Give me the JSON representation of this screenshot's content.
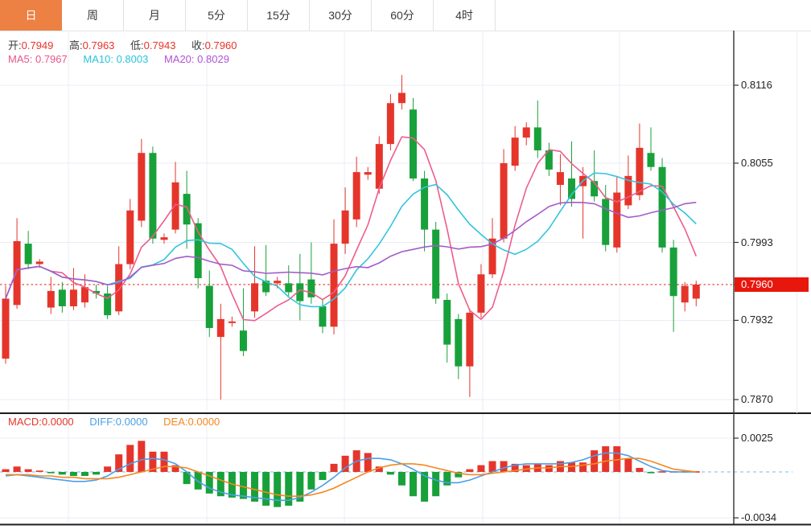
{
  "tabs": {
    "items": [
      {
        "label": "日",
        "active": true
      },
      {
        "label": "周",
        "active": false
      },
      {
        "label": "月",
        "active": false
      },
      {
        "label": "5分",
        "active": false
      },
      {
        "label": "15分",
        "active": false
      },
      {
        "label": "30分",
        "active": false
      },
      {
        "label": "60分",
        "active": false
      },
      {
        "label": "4时",
        "active": false
      }
    ]
  },
  "legend": {
    "ohlc": [
      {
        "label": "开:",
        "value": "0.7949"
      },
      {
        "label": "高:",
        "value": "0.7963"
      },
      {
        "label": "低:",
        "value": "0.7943"
      },
      {
        "label": "收:",
        "value": "0.7960"
      }
    ],
    "ma": [
      {
        "label": "MA5:",
        "value": "0.7967",
        "color": "#e8558a"
      },
      {
        "label": "MA10:",
        "value": "0.8003",
        "color": "#29c4dc"
      },
      {
        "label": "MA20:",
        "value": "0.8029",
        "color": "#b152d8"
      }
    ]
  },
  "macd_legend": [
    {
      "label": "MACD:",
      "value": "0.0000",
      "color": "#e8342c"
    },
    {
      "label": "DIFF:",
      "value": "0.0000",
      "color": "#4b9fe8"
    },
    {
      "label": "DEA:",
      "value": "0.0000",
      "color": "#f5871f"
    }
  ],
  "axis": {
    "price_ticks": [
      "0.8116",
      "0.8055",
      "0.7993",
      "0.7932",
      "0.7870"
    ],
    "price_tick_values": [
      0.8116,
      0.8055,
      0.7993,
      0.7932,
      0.787
    ],
    "last_price": "0.7960",
    "last_price_value": 0.796,
    "macd_ticks": [
      "0.0025",
      "-0.0034"
    ],
    "macd_tick_values": [
      0.0025,
      -0.0034
    ]
  },
  "colors": {
    "up": "#e5352b",
    "down": "#18a13a",
    "ma5": "#ed5d8c",
    "ma10": "#35c4dc",
    "ma20": "#a45cc8",
    "diff": "#4b9fe8",
    "dea": "#f5871f",
    "grid": "#e8edf5",
    "zero_dash": "#a5d2ee",
    "dotted_last": "#e8342c",
    "badge": "#e8170e",
    "axis_line": "#333333",
    "tab_active": "#ed8144"
  },
  "chart_data": {
    "type": "candlestick",
    "convention": "CN colors: red = up (close>open), green = down (close<open)",
    "title": "",
    "price_axis_labels": [
      0.8116,
      0.8055,
      0.7993,
      0.7932,
      0.787
    ],
    "last_close": 0.796,
    "macd_axis": {
      "top": 0.0025,
      "bottom": -0.0034
    },
    "ma_periods": [
      5,
      10,
      20
    ],
    "candles": [
      [
        0.7902,
        0.7959,
        0.7898,
        0.7949
      ],
      [
        0.7944,
        0.8012,
        0.7941,
        0.7994
      ],
      [
        0.7992,
        0.8002,
        0.7972,
        0.7976
      ],
      [
        0.7976,
        0.798,
        0.7973,
        0.7978
      ],
      [
        0.7942,
        0.7966,
        0.7937,
        0.7955
      ],
      [
        0.7956,
        0.7962,
        0.7938,
        0.7943
      ],
      [
        0.7943,
        0.7973,
        0.794,
        0.7956
      ],
      [
        0.7946,
        0.7968,
        0.7942,
        0.7958
      ],
      [
        0.7955,
        0.796,
        0.7949,
        0.7953
      ],
      [
        0.7953,
        0.7959,
        0.7933,
        0.7936
      ],
      [
        0.7939,
        0.799,
        0.7936,
        0.7976
      ],
      [
        0.7976,
        0.8027,
        0.7972,
        0.8018
      ],
      [
        0.801,
        0.8074,
        0.8005,
        0.8063
      ],
      [
        0.8063,
        0.8068,
        0.7992,
        0.7996
      ],
      [
        0.7995,
        0.8,
        0.7992,
        0.7997
      ],
      [
        0.8003,
        0.8056,
        0.8,
        0.804
      ],
      [
        0.8031,
        0.8049,
        0.7988,
        0.8007
      ],
      [
        0.8008,
        0.8012,
        0.7957,
        0.7965
      ],
      [
        0.7959,
        0.7971,
        0.7919,
        0.7926
      ],
      [
        0.7919,
        0.7945,
        0.787,
        0.7933
      ],
      [
        0.793,
        0.7935,
        0.7927,
        0.7931
      ],
      [
        0.7924,
        0.7957,
        0.7904,
        0.7908
      ],
      [
        0.7939,
        0.799,
        0.7934,
        0.7961
      ],
      [
        0.7963,
        0.7991,
        0.7951,
        0.7954
      ],
      [
        0.7961,
        0.7966,
        0.7957,
        0.7963
      ],
      [
        0.7961,
        0.7975,
        0.7951,
        0.7954
      ],
      [
        0.7961,
        0.7984,
        0.7932,
        0.7947
      ],
      [
        0.7964,
        0.7993,
        0.7945,
        0.795
      ],
      [
        0.7943,
        0.7949,
        0.7922,
        0.7927
      ],
      [
        0.7927,
        0.8011,
        0.7921,
        0.7992
      ],
      [
        0.7992,
        0.8036,
        0.7984,
        0.8018
      ],
      [
        0.8011,
        0.806,
        0.8005,
        0.8048
      ],
      [
        0.8046,
        0.8052,
        0.8042,
        0.8048
      ],
      [
        0.8035,
        0.8076,
        0.8031,
        0.807
      ],
      [
        0.807,
        0.8109,
        0.8065,
        0.8102
      ],
      [
        0.8102,
        0.8124,
        0.8097,
        0.811
      ],
      [
        0.8097,
        0.8106,
        0.8041,
        0.8043
      ],
      [
        0.8043,
        0.8049,
        0.7986,
        0.8003
      ],
      [
        0.8003,
        0.8009,
        0.7945,
        0.7949
      ],
      [
        0.7948,
        0.7953,
        0.7899,
        0.7913
      ],
      [
        0.7933,
        0.7937,
        0.7886,
        0.7896
      ],
      [
        0.7896,
        0.7941,
        0.7872,
        0.7938
      ],
      [
        0.7938,
        0.7976,
        0.7934,
        0.7968
      ],
      [
        0.7968,
        0.8012,
        0.7965,
        0.7996
      ],
      [
        0.7996,
        0.8066,
        0.7993,
        0.8055
      ],
      [
        0.8053,
        0.8084,
        0.8049,
        0.8075
      ],
      [
        0.8075,
        0.8087,
        0.8069,
        0.8083
      ],
      [
        0.8083,
        0.8104,
        0.8059,
        0.8065
      ],
      [
        0.8065,
        0.8071,
        0.8045,
        0.805
      ],
      [
        0.8038,
        0.8062,
        0.8022,
        0.8048
      ],
      [
        0.8043,
        0.8072,
        0.8021,
        0.8027
      ],
      [
        0.8037,
        0.8052,
        0.7996,
        0.8045
      ],
      [
        0.8041,
        0.8065,
        0.8025,
        0.8029
      ],
      [
        0.8027,
        0.8038,
        0.7986,
        0.7991
      ],
      [
        0.7989,
        0.8045,
        0.7985,
        0.8032
      ],
      [
        0.8022,
        0.8061,
        0.8019,
        0.8045
      ],
      [
        0.803,
        0.8086,
        0.8026,
        0.8067
      ],
      [
        0.8063,
        0.8083,
        0.8049,
        0.8052
      ],
      [
        0.8052,
        0.8059,
        0.7985,
        0.7989
      ],
      [
        0.7989,
        0.7995,
        0.7923,
        0.7951
      ],
      [
        0.7946,
        0.7962,
        0.7939,
        0.7959
      ],
      [
        0.7949,
        0.7963,
        0.7943,
        0.796
      ]
    ],
    "macd": {
      "hist": [
        0.0002,
        0.0004,
        0.0002,
        0.0001,
        -0.0001,
        -0.0002,
        -0.0003,
        -0.0003,
        -0.0002,
        0.0004,
        0.0013,
        0.002,
        0.0023,
        0.0015,
        0.0015,
        0.0005,
        -0.0009,
        -0.0013,
        -0.0016,
        -0.0018,
        -0.0019,
        -0.002,
        -0.0022,
        -0.0025,
        -0.0026,
        -0.0025,
        -0.0022,
        -0.0013,
        -0.0006,
        0.0006,
        0.0012,
        0.0016,
        0.0014,
        0.0004,
        -0.0002,
        -0.001,
        -0.0018,
        -0.0022,
        -0.0018,
        -0.001,
        -0.0004,
        0.0002,
        0.0005,
        0.0008,
        0.0008,
        0.0006,
        0.0005,
        0.0006,
        0.0005,
        0.0008,
        0.0007,
        0.0007,
        0.0016,
        0.0019,
        0.0019,
        0.001,
        0.0003,
        -0.0001,
        0.0,
        0.0,
        0.0,
        0.0
      ],
      "diff": [
        -0.0003,
        -0.0002,
        -0.0003,
        -0.0004,
        -0.0005,
        -0.0006,
        -0.0007,
        -0.0007,
        -0.0006,
        -0.0003,
        0.0002,
        0.0006,
        0.0009,
        0.001,
        0.0009,
        0.0006,
        0.0,
        -0.0007,
        -0.0012,
        -0.0015,
        -0.0017,
        -0.0018,
        -0.0019,
        -0.002,
        -0.0021,
        -0.0021,
        -0.0019,
        -0.0015,
        -0.001,
        -0.0004,
        0.0003,
        0.0008,
        0.001,
        0.001,
        0.0009,
        0.0006,
        0.0002,
        -0.0003,
        -0.0006,
        -0.0008,
        -0.0008,
        -0.0006,
        -0.0003,
        0.0,
        0.0003,
        0.0005,
        0.0006,
        0.0006,
        0.0006,
        0.0006,
        0.0007,
        0.0009,
        0.0012,
        0.0014,
        0.0014,
        0.0012,
        0.0008,
        0.0004,
        0.0001,
        0.0,
        0.0,
        0.0
      ],
      "dea": [
        -0.0002,
        -0.0002,
        -0.0002,
        -0.0003,
        -0.0003,
        -0.0004,
        -0.0004,
        -0.0005,
        -0.0005,
        -0.0005,
        -0.0004,
        -0.0002,
        0.0,
        0.0002,
        0.0004,
        0.0004,
        0.0003,
        0.0,
        -0.0003,
        -0.0006,
        -0.0009,
        -0.0011,
        -0.0013,
        -0.0015,
        -0.0017,
        -0.0018,
        -0.0018,
        -0.0017,
        -0.0015,
        -0.0012,
        -0.0008,
        -0.0004,
        0.0,
        0.0003,
        0.0005,
        0.0006,
        0.0006,
        0.0005,
        0.0003,
        0.0001,
        -0.0001,
        -0.0002,
        -0.0002,
        -0.0001,
        0.0,
        0.0001,
        0.0002,
        0.0003,
        0.0003,
        0.0004,
        0.0004,
        0.0005,
        0.0006,
        0.0008,
        0.0009,
        0.001,
        0.001,
        0.0008,
        0.0005,
        0.0002,
        0.0001,
        0.0
      ]
    }
  }
}
